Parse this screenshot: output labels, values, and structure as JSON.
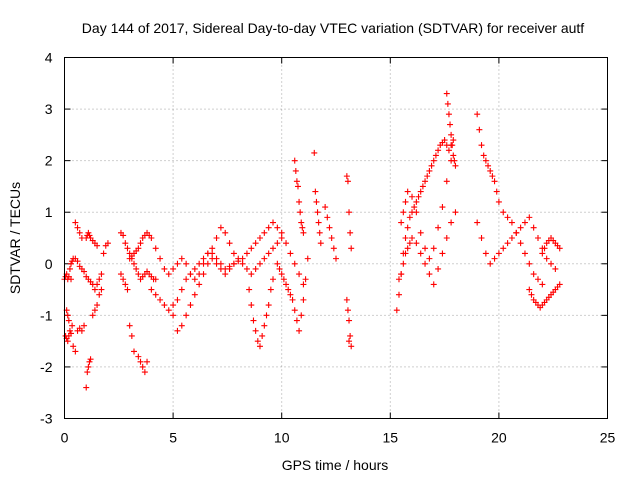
{
  "chart_data": {
    "type": "scatter",
    "title": "Day 144 of 2017, Sidereal Day-to-day VTEC variation (SDTVAR) for receiver autf",
    "xlabel": "GPS time / hours",
    "ylabel": "SDTVAR / TECUs",
    "xlim": [
      0,
      25
    ],
    "ylim": [
      -3,
      4
    ],
    "xticks": [
      "0",
      "5",
      "10",
      "15",
      "20",
      "25"
    ],
    "yticks": [
      "-3",
      "-2",
      "-1",
      "0",
      "1",
      "2",
      "3",
      "4"
    ],
    "grid": true,
    "marker": "+",
    "color": "#ff0000",
    "series": [
      {
        "name": "SDTVAR",
        "x": [
          0.0,
          0.05,
          0.1,
          0.15,
          0.2,
          0.25,
          0.3,
          0.35,
          0.4,
          0.5,
          0.6,
          0.7,
          0.8,
          0.9,
          1.0,
          1.1,
          1.2,
          1.3,
          1.4,
          1.5,
          1.6,
          1.7,
          1.8,
          1.9,
          2.0,
          0.05,
          0.1,
          0.15,
          0.2,
          0.25,
          0.3,
          0.35,
          0.4,
          0.5,
          0.6,
          0.7,
          0.8,
          0.9,
          1.0,
          1.05,
          1.1,
          1.15,
          1.2,
          1.3,
          1.4,
          1.5,
          1.6,
          1.7,
          0.1,
          0.15,
          0.2,
          0.3,
          0.5,
          0.6,
          0.7,
          0.8,
          1.0,
          1.05,
          1.1,
          1.15,
          1.2,
          1.3,
          1.4,
          1.5,
          2.6,
          2.7,
          2.8,
          2.9,
          3.0,
          3.1,
          3.2,
          3.3,
          3.4,
          3.5,
          3.6,
          3.7,
          3.8,
          3.9,
          4.0,
          4.1,
          4.2,
          2.6,
          2.7,
          2.8,
          2.9,
          3.0,
          3.1,
          3.2,
          3.4,
          3.5,
          3.6,
          3.7,
          3.8,
          3.0,
          3.1,
          3.2,
          3.3,
          3.4,
          3.5,
          3.6,
          3.7,
          3.8,
          3.9,
          4.0,
          4.2,
          4.4,
          4.6,
          4.8,
          5.0,
          5.2,
          5.4,
          5.6,
          5.8,
          6.0,
          6.2,
          6.4,
          6.6,
          6.8,
          7.0,
          7.2,
          7.4,
          7.6,
          7.8,
          4.0,
          4.2,
          4.4,
          4.6,
          4.8,
          5.0,
          5.2,
          5.4,
          5.6,
          5.8,
          6.0,
          6.2,
          6.4,
          6.6,
          6.8,
          7.0,
          7.2,
          7.4,
          7.6,
          7.8,
          8.0,
          8.2,
          8.4,
          8.6,
          8.8,
          9.0,
          9.2,
          9.4,
          9.6,
          9.8,
          10.0,
          5.0,
          5.2,
          5.4,
          5.6,
          5.8,
          6.0,
          6.2,
          6.4,
          6.6,
          6.8,
          7.0,
          7.2,
          7.4,
          7.6,
          7.8,
          8.0,
          8.2,
          8.4,
          8.6,
          8.8,
          9.0,
          9.2,
          9.4,
          9.6,
          9.8,
          10.0,
          10.2,
          10.4,
          10.6,
          10.8,
          11.0,
          8.5,
          8.6,
          8.7,
          8.8,
          8.9,
          9.0,
          9.1,
          9.2,
          9.3,
          9.4,
          9.5,
          9.6,
          9.8,
          9.9,
          10.0,
          10.1,
          10.2,
          10.3,
          10.4,
          10.5,
          10.6,
          10.7,
          10.8,
          10.9,
          11.0,
          11.1,
          11.2,
          10.6,
          10.65,
          10.7,
          10.75,
          10.8,
          10.85,
          10.9,
          10.95,
          11.0,
          11.5,
          11.55,
          11.6,
          11.65,
          11.7,
          11.75,
          11.8,
          12.0,
          12.1,
          12.2,
          12.3,
          12.4,
          12.5,
          13.0,
          13.05,
          13.1,
          13.15,
          13.2,
          13.0,
          13.05,
          13.1,
          13.15,
          13.2,
          13.1,
          15.3,
          15.4,
          15.5,
          15.6,
          15.7,
          15.8,
          15.9,
          16.0,
          16.1,
          16.2,
          16.3,
          16.4,
          16.5,
          16.6,
          16.7,
          16.8,
          16.9,
          17.0,
          17.1,
          17.2,
          17.3,
          17.4,
          17.5,
          17.6,
          17.7,
          17.8,
          17.9,
          15.4,
          15.5,
          15.6,
          15.7,
          15.8,
          15.9,
          16.0,
          16.2,
          16.4,
          16.6,
          16.8,
          17.0,
          17.2,
          17.4,
          17.6,
          17.8,
          18.0,
          15.5,
          15.6,
          15.7,
          15.8,
          16.0,
          16.2,
          16.4,
          16.6,
          16.8,
          17.0,
          17.2,
          17.4,
          17.6,
          17.8,
          17.6,
          17.65,
          17.7,
          17.75,
          17.8,
          17.85,
          17.9,
          17.95,
          18.0,
          19.0,
          19.1,
          19.2,
          19.3,
          19.4,
          19.5,
          19.6,
          19.7,
          19.8,
          19.9,
          20.0,
          20.2,
          20.4,
          20.6,
          20.8,
          21.0,
          21.2,
          21.4,
          21.6,
          21.8,
          22.0,
          19.0,
          19.2,
          19.4,
          19.6,
          19.8,
          20.0,
          20.2,
          20.4,
          20.6,
          20.8,
          21.0,
          21.2,
          21.4,
          21.6,
          21.8,
          22.0,
          22.2,
          22.4,
          22.6,
          21.4,
          21.5,
          21.6,
          21.7,
          21.8,
          21.9,
          22.0,
          22.1,
          22.2,
          22.3,
          22.4,
          22.5,
          22.6,
          22.7,
          22.8,
          22.0,
          22.1,
          22.2,
          22.3,
          22.4,
          22.5,
          22.6,
          22.7,
          22.8
        ],
        "y": [
          -0.3,
          -0.25,
          -0.2,
          -0.3,
          -0.25,
          -0.1,
          0.0,
          0.05,
          0.1,
          0.1,
          0.05,
          -0.05,
          -0.1,
          -0.15,
          -0.25,
          -0.3,
          -0.35,
          -0.4,
          -0.5,
          -0.4,
          -0.3,
          -0.2,
          0.2,
          0.35,
          0.4,
          -1.4,
          -1.45,
          -1.5,
          -1.4,
          -1.3,
          -1.35,
          -1.2,
          -1.6,
          -1.7,
          -1.3,
          -1.25,
          -1.3,
          -1.2,
          -2.4,
          -2.1,
          -2.0,
          -1.9,
          -1.85,
          -1.0,
          -0.9,
          -0.8,
          -0.6,
          -0.5,
          -0.9,
          -1.0,
          -1.1,
          -0.3,
          0.8,
          0.7,
          0.6,
          0.5,
          0.5,
          0.55,
          0.6,
          0.55,
          0.5,
          0.45,
          0.4,
          0.35,
          0.6,
          0.55,
          0.4,
          0.3,
          0.2,
          0.1,
          0.0,
          -0.1,
          -0.2,
          -0.3,
          -0.25,
          -0.2,
          -0.15,
          -0.2,
          -0.25,
          -0.3,
          -0.3,
          -0.2,
          -0.3,
          -0.4,
          -0.5,
          -1.2,
          -1.4,
          -1.7,
          -1.8,
          -1.9,
          -2.0,
          -2.1,
          -1.9,
          0.1,
          0.15,
          0.2,
          0.25,
          0.3,
          0.4,
          0.5,
          0.55,
          0.6,
          0.55,
          0.5,
          0.3,
          0.1,
          -0.1,
          -0.2,
          -0.1,
          0.0,
          0.1,
          0.0,
          -0.2,
          -0.3,
          -0.2,
          0.0,
          0.2,
          0.3,
          0.5,
          0.7,
          0.6,
          0.4,
          0.2,
          -0.5,
          -0.6,
          -0.7,
          -0.8,
          -0.9,
          -1.0,
          -1.3,
          -1.2,
          -1.0,
          -0.8,
          -0.6,
          -0.4,
          -0.2,
          0.0,
          0.1,
          0.0,
          -0.1,
          -0.2,
          -0.1,
          0.0,
          0.1,
          0.0,
          -0.1,
          -0.2,
          -0.1,
          0.0,
          0.1,
          0.2,
          0.3,
          0.4,
          0.5,
          -0.8,
          -0.7,
          -0.5,
          -0.3,
          -0.2,
          -0.1,
          0.0,
          0.1,
          0.2,
          0.2,
          0.1,
          0.0,
          -0.1,
          -0.05,
          0.0,
          0.05,
          0.1,
          0.2,
          0.3,
          0.4,
          0.5,
          0.6,
          0.7,
          0.8,
          0.7,
          0.6,
          0.4,
          0.2,
          0.0,
          -0.2,
          -0.4,
          -0.5,
          -0.8,
          -1.1,
          -1.3,
          -1.5,
          -1.6,
          -1.4,
          -1.2,
          -1.0,
          -0.8,
          -0.5,
          -0.3,
          0.0,
          -0.1,
          -0.2,
          -0.3,
          -0.4,
          -0.5,
          -0.6,
          -0.7,
          -0.9,
          -1.1,
          -1.3,
          -1.0,
          -0.7,
          -0.3,
          0.1,
          2.0,
          1.8,
          1.6,
          1.5,
          1.2,
          1.0,
          0.8,
          0.7,
          0.6,
          2.15,
          1.4,
          1.2,
          1.0,
          0.8,
          0.6,
          0.4,
          1.1,
          0.9,
          0.7,
          0.5,
          0.3,
          0.1,
          1.7,
          1.6,
          1.0,
          0.6,
          0.3,
          -0.7,
          -0.9,
          -1.1,
          -1.4,
          -1.6,
          -1.5,
          -0.9,
          -0.6,
          -0.2,
          0.2,
          0.5,
          0.7,
          0.9,
          1.0,
          1.1,
          1.2,
          1.3,
          1.4,
          1.5,
          1.6,
          1.7,
          1.8,
          1.9,
          2.0,
          2.1,
          2.2,
          2.3,
          2.35,
          2.4,
          2.3,
          2.2,
          2.3,
          2.4,
          -0.3,
          -0.2,
          0.0,
          0.2,
          0.3,
          0.4,
          0.5,
          0.4,
          0.2,
          0.0,
          -0.2,
          -0.4,
          -0.1,
          0.2,
          0.5,
          0.8,
          1.0,
          0.8,
          1.0,
          1.2,
          1.4,
          1.3,
          1.0,
          0.6,
          0.3,
          0.1,
          0.3,
          0.7,
          1.1,
          1.6,
          2.0,
          3.3,
          3.1,
          2.9,
          2.7,
          2.5,
          2.3,
          2.1,
          2.0,
          1.9,
          2.9,
          2.6,
          2.3,
          2.1,
          2.0,
          1.9,
          1.8,
          1.7,
          1.6,
          1.4,
          1.2,
          1.0,
          0.9,
          0.8,
          0.6,
          0.4,
          0.2,
          0.0,
          -0.2,
          -0.3,
          -0.4,
          0.8,
          0.5,
          0.2,
          0.0,
          0.1,
          0.2,
          0.3,
          0.4,
          0.5,
          0.6,
          0.7,
          0.8,
          0.9,
          0.7,
          0.5,
          0.3,
          0.1,
          0.0,
          -0.1,
          -0.5,
          -0.6,
          -0.7,
          -0.75,
          -0.8,
          -0.85,
          -0.8,
          -0.75,
          -0.7,
          -0.65,
          -0.6,
          -0.55,
          -0.5,
          -0.45,
          -0.4,
          0.2,
          0.3,
          0.4,
          0.45,
          0.5,
          0.45,
          0.4,
          0.35,
          0.3
        ]
      }
    ]
  }
}
